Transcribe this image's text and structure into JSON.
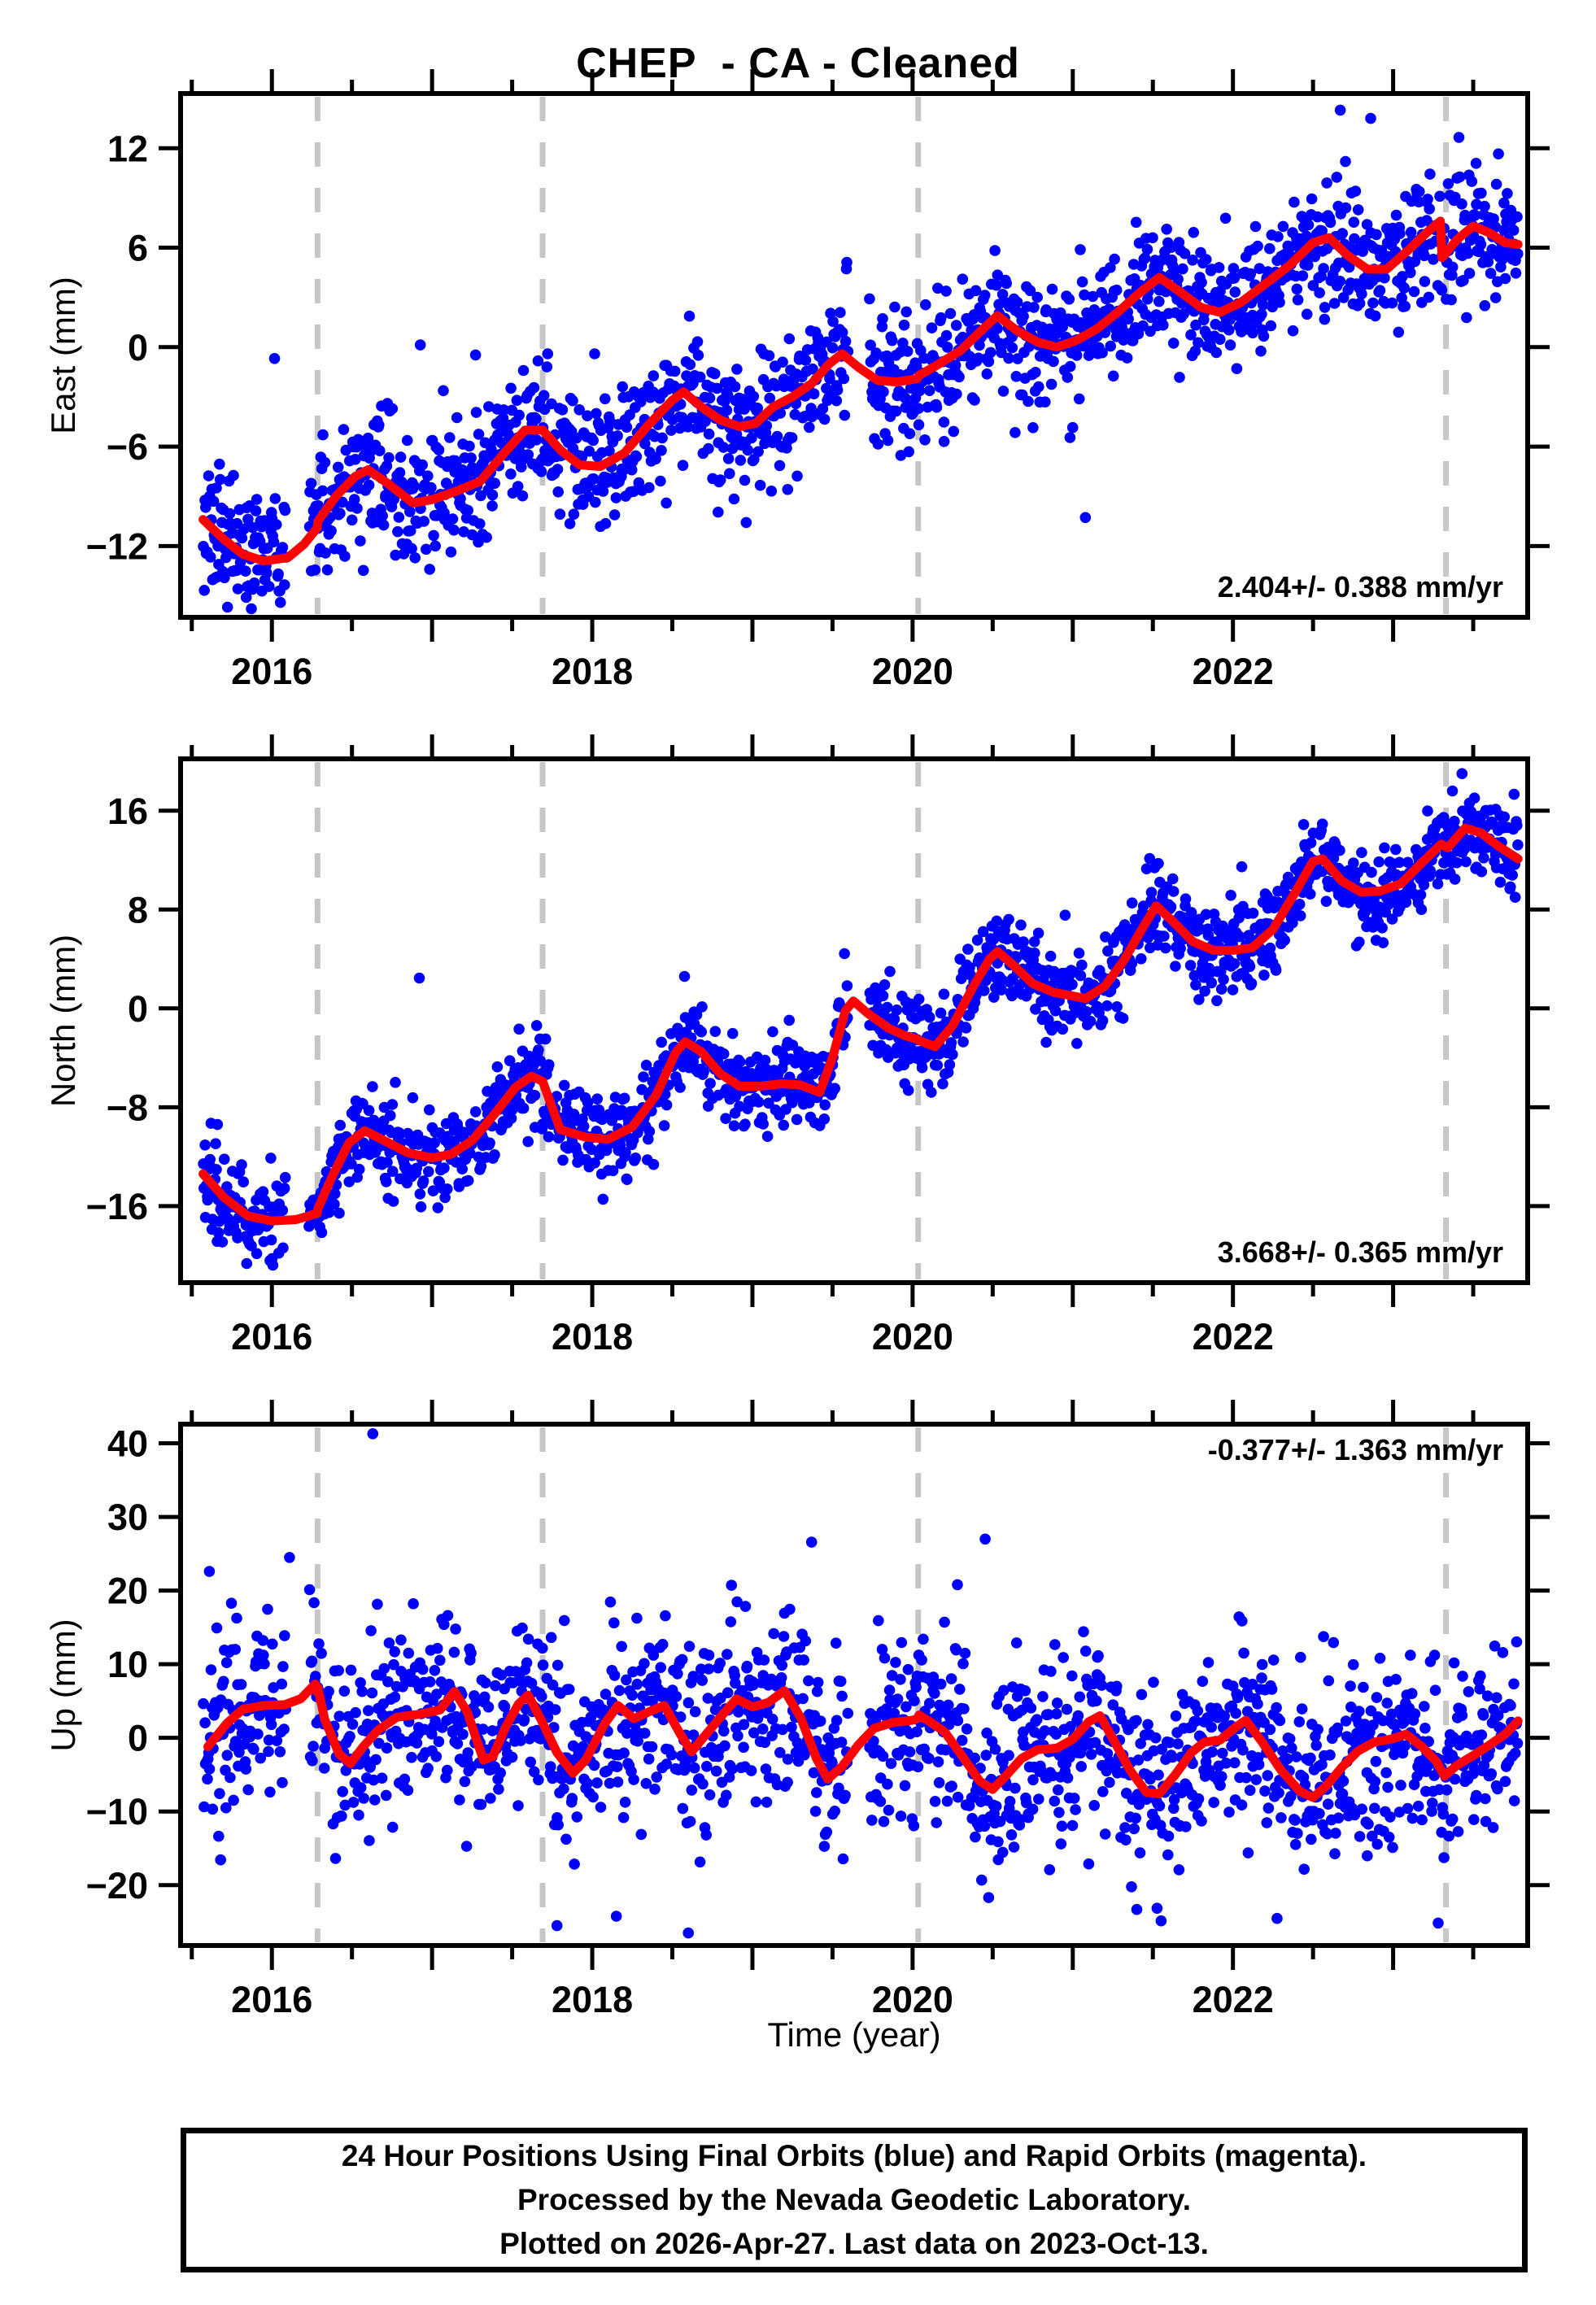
{
  "page": {
    "title": "CHEP  - CA - Cleaned"
  },
  "colors": {
    "final_orbit": "#0000ff",
    "rapid_orbit": "#ff00ff",
    "trend": "#ff0000",
    "event_line": "#c6c6c6",
    "frame": "#000000",
    "background": "#ffffff"
  },
  "x_axis": {
    "label": "Time (year)",
    "range": [
      2015.43,
      2023.84
    ],
    "data_start": 2015.57,
    "data_end": 2023.78,
    "major_ticks": [
      2016,
      2018,
      2020,
      2022
    ],
    "minor_step": 0.5
  },
  "event_lines": [
    2016.285,
    2017.69,
    2020.035,
    2023.33
  ],
  "data_gaps": [
    [
      2016.09,
      2016.23
    ],
    [
      2019.6,
      2019.73
    ]
  ],
  "footer": {
    "lines": [
      "24 Hour Positions Using Final Orbits (blue) and Rapid Orbits (magenta).",
      "Processed by the Nevada Geodetic Laboratory.",
      "Plotted on 2026-Apr-27. Last data on 2023-Oct-13."
    ]
  },
  "chart_data": [
    {
      "type": "scatter",
      "component": "East",
      "ylabel": "East (mm)",
      "ylim": [
        -16.3,
        15.3
      ],
      "yticks": [
        12,
        6,
        0,
        -6,
        -12
      ],
      "rate_label": "2.404+/- 0.388 mm/yr",
      "scatter": {
        "n": 1700,
        "sd": 1.9,
        "seed": 11,
        "outlier_prob": 0.012,
        "outlier_scale": 2.6,
        "extra_points": [
          [
            2022.67,
            14.3
          ],
          [
            2022.86,
            13.8
          ]
        ]
      },
      "trend": [
        [
          2015.57,
          -10.4
        ],
        [
          2015.7,
          -11.6
        ],
        [
          2015.82,
          -12.5
        ],
        [
          2015.95,
          -12.9
        ],
        [
          2016.1,
          -12.7
        ],
        [
          2016.2,
          -11.9
        ],
        [
          2016.283,
          -10.9
        ],
        [
          2016.287,
          -10.5
        ],
        [
          2016.4,
          -9.0
        ],
        [
          2016.52,
          -7.8
        ],
        [
          2016.6,
          -7.4
        ],
        [
          2016.72,
          -8.2
        ],
        [
          2016.88,
          -9.4
        ],
        [
          2017.0,
          -9.2
        ],
        [
          2017.15,
          -8.7
        ],
        [
          2017.3,
          -8.1
        ],
        [
          2017.45,
          -6.4
        ],
        [
          2017.58,
          -5.0
        ],
        [
          2017.69,
          -5.0
        ],
        [
          2017.8,
          -6.2
        ],
        [
          2017.92,
          -7.1
        ],
        [
          2018.05,
          -7.2
        ],
        [
          2018.2,
          -6.4
        ],
        [
          2018.35,
          -4.7
        ],
        [
          2018.5,
          -3.2
        ],
        [
          2018.57,
          -2.7
        ],
        [
          2018.68,
          -3.6
        ],
        [
          2018.8,
          -4.4
        ],
        [
          2018.92,
          -4.8
        ],
        [
          2019.02,
          -4.6
        ],
        [
          2019.13,
          -3.6
        ],
        [
          2019.25,
          -3.0
        ],
        [
          2019.37,
          -2.2
        ],
        [
          2019.48,
          -1.0
        ],
        [
          2019.56,
          -0.4
        ],
        [
          2019.66,
          -1.2
        ],
        [
          2019.78,
          -2.0
        ],
        [
          2019.9,
          -2.1
        ],
        [
          2020.03,
          -1.9
        ],
        [
          2020.04,
          -1.7
        ],
        [
          2020.15,
          -1.1
        ],
        [
          2020.3,
          -0.2
        ],
        [
          2020.45,
          1.2
        ],
        [
          2020.53,
          1.9
        ],
        [
          2020.65,
          1.0
        ],
        [
          2020.78,
          0.3
        ],
        [
          2020.9,
          0.0
        ],
        [
          2021.02,
          0.4
        ],
        [
          2021.15,
          1.1
        ],
        [
          2021.28,
          2.1
        ],
        [
          2021.42,
          3.3
        ],
        [
          2021.54,
          4.2
        ],
        [
          2021.66,
          3.4
        ],
        [
          2021.8,
          2.4
        ],
        [
          2021.92,
          2.1
        ],
        [
          2022.05,
          2.7
        ],
        [
          2022.2,
          3.8
        ],
        [
          2022.35,
          4.9
        ],
        [
          2022.5,
          6.3
        ],
        [
          2022.6,
          6.6
        ],
        [
          2022.72,
          5.5
        ],
        [
          2022.84,
          4.7
        ],
        [
          2022.96,
          4.7
        ],
        [
          2023.1,
          5.9
        ],
        [
          2023.22,
          7.0
        ],
        [
          2023.295,
          7.6
        ],
        [
          2023.305,
          5.4
        ],
        [
          2023.4,
          6.5
        ],
        [
          2023.5,
          7.3
        ],
        [
          2023.6,
          6.9
        ],
        [
          2023.7,
          6.3
        ],
        [
          2023.78,
          6.2
        ]
      ]
    },
    {
      "type": "scatter",
      "component": "North",
      "ylabel": "North (mm)",
      "ylim": [
        -22.2,
        20.2
      ],
      "yticks": [
        16,
        8,
        0,
        -8,
        -16
      ],
      "rate_label": "3.668+/- 0.365 mm/yr",
      "scatter": {
        "n": 1700,
        "sd": 1.8,
        "seed": 22,
        "outlier_prob": 0.012,
        "outlier_scale": 2.4,
        "extra_points": [
          [
            2015.62,
            -9.3
          ],
          [
            2015.66,
            -9.4
          ],
          [
            2023.43,
            19.0
          ],
          [
            2023.37,
            17.6
          ]
        ]
      },
      "trend": [
        [
          2015.57,
          -13.4
        ],
        [
          2015.7,
          -15.3
        ],
        [
          2015.85,
          -16.8
        ],
        [
          2016.0,
          -17.2
        ],
        [
          2016.15,
          -17.1
        ],
        [
          2016.283,
          -16.6
        ],
        [
          2016.287,
          -16.2
        ],
        [
          2016.38,
          -13.5
        ],
        [
          2016.48,
          -10.9
        ],
        [
          2016.58,
          -9.9
        ],
        [
          2016.7,
          -10.7
        ],
        [
          2016.85,
          -11.7
        ],
        [
          2017.0,
          -12.1
        ],
        [
          2017.12,
          -11.8
        ],
        [
          2017.25,
          -10.7
        ],
        [
          2017.4,
          -8.4
        ],
        [
          2017.52,
          -6.4
        ],
        [
          2017.62,
          -5.5
        ],
        [
          2017.69,
          -5.9
        ],
        [
          2017.8,
          -9.8
        ],
        [
          2017.95,
          -10.4
        ],
        [
          2018.1,
          -10.6
        ],
        [
          2018.25,
          -9.6
        ],
        [
          2018.4,
          -7.0
        ],
        [
          2018.52,
          -3.6
        ],
        [
          2018.58,
          -2.7
        ],
        [
          2018.68,
          -3.5
        ],
        [
          2018.8,
          -5.3
        ],
        [
          2018.92,
          -6.3
        ],
        [
          2019.05,
          -6.3
        ],
        [
          2019.18,
          -6.1
        ],
        [
          2019.3,
          -6.2
        ],
        [
          2019.42,
          -6.8
        ],
        [
          2019.5,
          -4.0
        ],
        [
          2019.58,
          -0.2
        ],
        [
          2019.63,
          0.6
        ],
        [
          2019.72,
          -0.4
        ],
        [
          2019.85,
          -1.6
        ],
        [
          2019.95,
          -2.2
        ],
        [
          2020.03,
          -2.5
        ],
        [
          2020.04,
          -2.6
        ],
        [
          2020.14,
          -3.1
        ],
        [
          2020.25,
          -1.4
        ],
        [
          2020.38,
          1.8
        ],
        [
          2020.48,
          4.0
        ],
        [
          2020.53,
          4.6
        ],
        [
          2020.62,
          3.6
        ],
        [
          2020.75,
          2.0
        ],
        [
          2020.88,
          1.3
        ],
        [
          2021.0,
          1.0
        ],
        [
          2021.08,
          0.8
        ],
        [
          2021.2,
          1.8
        ],
        [
          2021.32,
          3.9
        ],
        [
          2021.44,
          6.6
        ],
        [
          2021.52,
          8.3
        ],
        [
          2021.62,
          7.1
        ],
        [
          2021.75,
          5.4
        ],
        [
          2021.88,
          4.7
        ],
        [
          2022.0,
          4.7
        ],
        [
          2022.12,
          4.9
        ],
        [
          2022.25,
          6.4
        ],
        [
          2022.38,
          9.2
        ],
        [
          2022.5,
          11.9
        ],
        [
          2022.56,
          12.1
        ],
        [
          2022.68,
          10.3
        ],
        [
          2022.8,
          9.4
        ],
        [
          2022.92,
          9.5
        ],
        [
          2023.05,
          10.1
        ],
        [
          2023.18,
          11.8
        ],
        [
          2023.3,
          13.3
        ],
        [
          2023.34,
          13.0
        ],
        [
          2023.45,
          14.6
        ],
        [
          2023.55,
          14.2
        ],
        [
          2023.65,
          13.2
        ],
        [
          2023.78,
          12.1
        ]
      ]
    },
    {
      "type": "scatter",
      "component": "Up",
      "ylabel": "Up (mm)",
      "ylim": [
        -28.2,
        42.6
      ],
      "yticks": [
        40,
        30,
        20,
        10,
        0,
        -10,
        -20
      ],
      "rate_label": "-0.377+/- 1.363 mm/yr",
      "scatter": {
        "n": 1700,
        "sd": 6.0,
        "seed": 33,
        "outlier_prob": 0.02,
        "outlier_scale": 2.2,
        "extra_points": [
          [
            2016.63,
            41.3
          ],
          [
            2016.11,
            24.5
          ],
          [
            2015.61,
            22.6
          ],
          [
            2018.6,
            -26.5
          ],
          [
            2017.78,
            -25.5
          ],
          [
            2020.28,
            20.8
          ]
        ]
      },
      "trend": [
        [
          2015.6,
          -1.2
        ],
        [
          2015.72,
          2.0
        ],
        [
          2015.82,
          3.9
        ],
        [
          2015.95,
          4.4
        ],
        [
          2016.08,
          4.5
        ],
        [
          2016.18,
          5.3
        ],
        [
          2016.27,
          7.3
        ],
        [
          2016.283,
          6.2
        ],
        [
          2016.287,
          6.8
        ],
        [
          2016.33,
          2.5
        ],
        [
          2016.42,
          -2.2
        ],
        [
          2016.49,
          -3.5
        ],
        [
          2016.57,
          -1.2
        ],
        [
          2016.66,
          1.0
        ],
        [
          2016.78,
          2.8
        ],
        [
          2016.92,
          3.2
        ],
        [
          2017.05,
          3.8
        ],
        [
          2017.14,
          6.3
        ],
        [
          2017.22,
          3.5
        ],
        [
          2017.32,
          -3.0
        ],
        [
          2017.38,
          -2.5
        ],
        [
          2017.46,
          1.5
        ],
        [
          2017.54,
          4.6
        ],
        [
          2017.6,
          5.8
        ],
        [
          2017.68,
          2.5
        ],
        [
          2017.78,
          -2.0
        ],
        [
          2017.88,
          -4.8
        ],
        [
          2017.96,
          -3.0
        ],
        [
          2018.08,
          2.0
        ],
        [
          2018.16,
          4.4
        ],
        [
          2018.26,
          2.6
        ],
        [
          2018.36,
          3.6
        ],
        [
          2018.45,
          4.4
        ],
        [
          2018.55,
          0.5
        ],
        [
          2018.62,
          -1.9
        ],
        [
          2018.7,
          0.2
        ],
        [
          2018.8,
          2.8
        ],
        [
          2018.9,
          5.3
        ],
        [
          2019.0,
          4.2
        ],
        [
          2019.1,
          4.8
        ],
        [
          2019.2,
          6.4
        ],
        [
          2019.3,
          2.8
        ],
        [
          2019.4,
          -2.8
        ],
        [
          2019.47,
          -5.6
        ],
        [
          2019.56,
          -3.9
        ],
        [
          2019.66,
          -1.0
        ],
        [
          2019.76,
          1.3
        ],
        [
          2019.88,
          2.1
        ],
        [
          2020.0,
          2.4
        ],
        [
          2020.03,
          2.6
        ],
        [
          2020.04,
          3.1
        ],
        [
          2020.1,
          2.3
        ],
        [
          2020.2,
          0.8
        ],
        [
          2020.32,
          -2.8
        ],
        [
          2020.42,
          -5.9
        ],
        [
          2020.5,
          -7.0
        ],
        [
          2020.58,
          -5.2
        ],
        [
          2020.68,
          -2.8
        ],
        [
          2020.78,
          -1.6
        ],
        [
          2020.9,
          -1.4
        ],
        [
          2021.0,
          -0.2
        ],
        [
          2021.1,
          2.2
        ],
        [
          2021.17,
          3.0
        ],
        [
          2021.26,
          -0.5
        ],
        [
          2021.36,
          -4.5
        ],
        [
          2021.46,
          -7.4
        ],
        [
          2021.54,
          -7.6
        ],
        [
          2021.64,
          -5.0
        ],
        [
          2021.74,
          -2.0
        ],
        [
          2021.82,
          -0.6
        ],
        [
          2021.92,
          -0.3
        ],
        [
          2022.02,
          1.5
        ],
        [
          2022.08,
          2.4
        ],
        [
          2022.18,
          -0.5
        ],
        [
          2022.3,
          -4.4
        ],
        [
          2022.42,
          -7.3
        ],
        [
          2022.5,
          -8.1
        ],
        [
          2022.58,
          -6.6
        ],
        [
          2022.68,
          -4.0
        ],
        [
          2022.78,
          -1.8
        ],
        [
          2022.88,
          -0.6
        ],
        [
          2023.0,
          -0.1
        ],
        [
          2023.08,
          0.5
        ],
        [
          2023.18,
          -1.2
        ],
        [
          2023.27,
          -3.2
        ],
        [
          2023.32,
          -5.2
        ],
        [
          2023.4,
          -3.7
        ],
        [
          2023.5,
          -2.4
        ],
        [
          2023.6,
          -1.0
        ],
        [
          2023.7,
          0.5
        ],
        [
          2023.78,
          2.3
        ]
      ]
    }
  ]
}
